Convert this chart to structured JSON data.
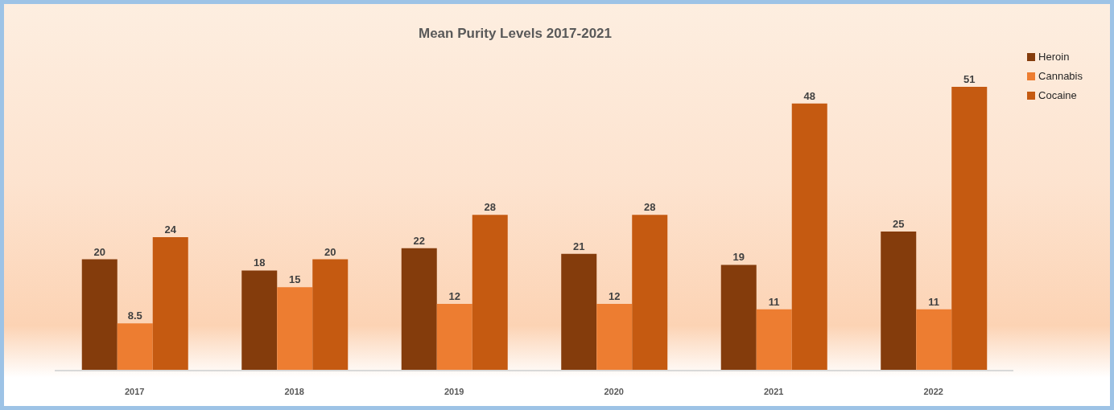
{
  "chart_data": {
    "type": "bar",
    "title": "Mean Purity Levels 2017-2021",
    "categories": [
      "2017",
      "2018",
      "2019",
      "2020",
      "2021",
      "2022"
    ],
    "series": [
      {
        "name": "Heroin",
        "color": "#843c0c",
        "values": [
          20,
          18,
          22,
          21,
          19,
          25
        ]
      },
      {
        "name": "Cannabis",
        "color": "#ed7d31",
        "values": [
          8.5,
          15,
          12,
          12,
          11,
          11
        ]
      },
      {
        "name": "Cocaine",
        "color": "#c55a11",
        "values": [
          24,
          20,
          28,
          28,
          48,
          51
        ]
      }
    ],
    "data_labels": true,
    "legend": "top right"
  }
}
